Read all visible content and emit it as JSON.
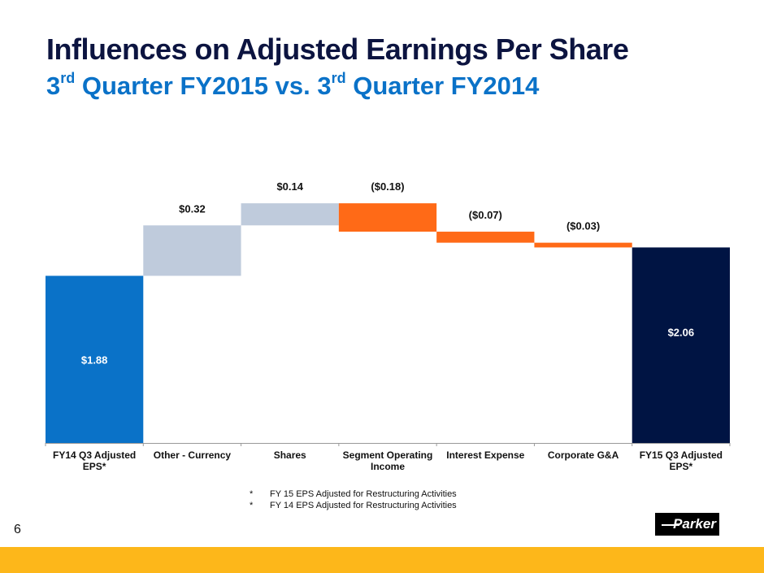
{
  "slide": {
    "title": "Influences on Adjusted Earnings Per Share",
    "subtitle_part1": "3",
    "subtitle_sup1": "rd",
    "subtitle_part2": " Quarter FY2015 vs. 3",
    "subtitle_sup2": "rd",
    "subtitle_part3": " Quarter FY2014",
    "page_number": "6",
    "logo_text": "Parker",
    "footnotes": [
      {
        "marker": "*",
        "text": "FY 15 EPS Adjusted for Restructuring Activities"
      },
      {
        "marker": "*",
        "text": "FY 14 EPS Adjusted for Restructuring Activities"
      }
    ],
    "colors": {
      "title": "#0c1440",
      "subtitle": "#0a72c8",
      "footer_bar": "#fdb71a"
    }
  },
  "chart_data": {
    "type": "bar",
    "subtype": "waterfall",
    "title": "Influences on Adjusted Earnings Per Share",
    "xlabel": "",
    "ylabel": "",
    "ylim": [
      0.82,
      2.45
    ],
    "grid": false,
    "legend": "none",
    "categories": [
      [
        "FY14 Q3 Adjusted",
        "EPS*"
      ],
      [
        "Other - Currency"
      ],
      [
        "Shares"
      ],
      [
        "Segment Operating",
        "Income"
      ],
      [
        "Interest Expense"
      ],
      [
        "Corporate G&A"
      ],
      [
        "FY15 Q3 Adjusted",
        "EPS*"
      ]
    ],
    "values": [
      1.88,
      0.32,
      0.14,
      -0.18,
      -0.07,
      -0.03,
      2.06
    ],
    "kinds": [
      "total",
      "increase",
      "increase",
      "decrease",
      "decrease",
      "decrease",
      "total"
    ],
    "labels": [
      "$1.88",
      "$0.32",
      "$0.14",
      "($0.18)",
      "($0.07)",
      "($0.03)",
      "$2.06"
    ],
    "colors": {
      "start_total": "#0a72c8",
      "end_total": "#001443",
      "increase": "#bfcbdc",
      "decrease": "#ff6a17",
      "axis": "#999999"
    }
  }
}
